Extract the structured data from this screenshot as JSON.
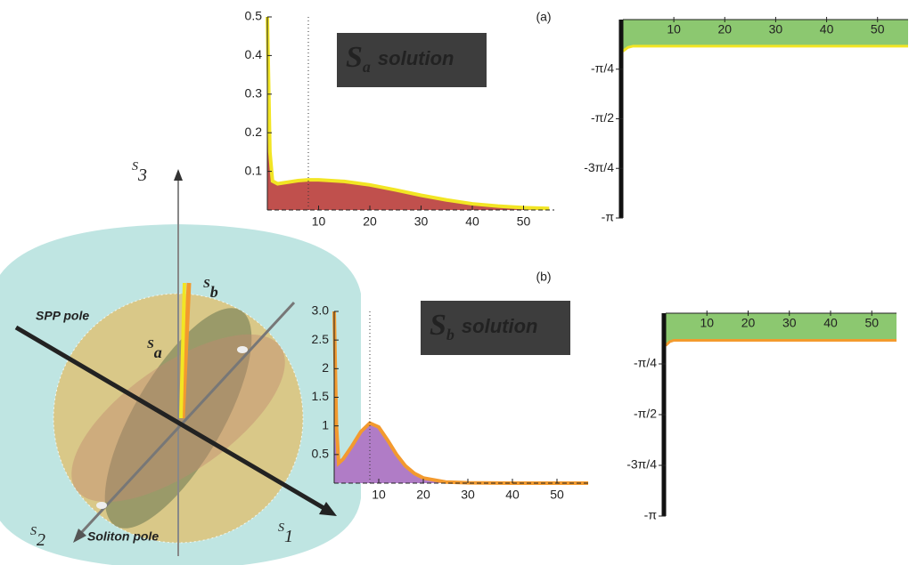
{
  "chart_data": [
    {
      "type": "area",
      "panel_label": "(a)",
      "annotation": {
        "symbol": "S",
        "subscript": "a",
        "text": "solution"
      },
      "x": [
        0,
        0.5,
        1,
        2,
        4,
        6,
        8,
        10,
        15,
        20,
        25,
        30,
        35,
        40,
        45,
        50,
        55
      ],
      "values": [
        0.5,
        0.15,
        0.075,
        0.068,
        0.072,
        0.076,
        0.078,
        0.078,
        0.074,
        0.065,
        0.052,
        0.038,
        0.026,
        0.016,
        0.01,
        0.006,
        0.004
      ],
      "color": "#f2e524",
      "fill": "#c0504d",
      "marker_x": 8,
      "xlim": [
        0,
        56
      ],
      "ylim": [
        0,
        0.5
      ],
      "xticks": [
        10,
        20,
        30,
        40,
        50
      ],
      "yticks": [
        0.1,
        0.2,
        0.3,
        0.4,
        0.5
      ]
    },
    {
      "type": "phase",
      "x": [
        0,
        1,
        2,
        56
      ],
      "values": [
        -0.5,
        -0.44,
        -0.42,
        -0.42
      ],
      "color": "#f2e524",
      "fill": "#8cc870",
      "xlim": [
        0,
        56
      ],
      "ylim": [
        -3.1416,
        0
      ],
      "xticks": [
        10,
        20,
        30,
        40,
        50
      ],
      "yticks": [
        {
          "value": -0.7854,
          "label": "-π/4"
        },
        {
          "value": -1.5708,
          "label": "-π/2"
        },
        {
          "value": -2.3562,
          "label": "-3π/4"
        },
        {
          "value": -3.1416,
          "label": "-π"
        }
      ]
    },
    {
      "type": "area",
      "panel_label": "(b)",
      "annotation": {
        "symbol": "S",
        "subscript": "b",
        "text": "solution"
      },
      "x": [
        0,
        0.5,
        1,
        2,
        4,
        6,
        8,
        10,
        12,
        14,
        16,
        18,
        20,
        25,
        30,
        40,
        50,
        57
      ],
      "values": [
        3.0,
        1.0,
        0.35,
        0.42,
        0.65,
        0.9,
        1.05,
        0.98,
        0.75,
        0.5,
        0.3,
        0.17,
        0.09,
        0.02,
        0.005,
        0,
        0,
        0
      ],
      "color": "#f39a2e",
      "fill": "#b07cc6",
      "marker_x": 8,
      "xlim": [
        0,
        57
      ],
      "ylim": [
        0,
        3.0
      ],
      "xticks": [
        10,
        20,
        30,
        40,
        50
      ],
      "yticks": [
        0.5,
        1.0,
        1.5,
        2.0,
        2.5,
        {
          "value": 3.0,
          "label": "3.0"
        }
      ]
    },
    {
      "type": "phase",
      "x": [
        0,
        1,
        2,
        56
      ],
      "values": [
        -0.5,
        -0.44,
        -0.42,
        -0.42
      ],
      "color": "#f39a2e",
      "fill": "#8cc870",
      "xlim": [
        0,
        56
      ],
      "ylim": [
        -3.1416,
        0
      ],
      "xticks": [
        10,
        20,
        30,
        40,
        50
      ],
      "yticks": [
        {
          "value": -0.7854,
          "label": "-π/4"
        },
        {
          "value": -1.5708,
          "label": "-π/2"
        },
        {
          "value": -2.3562,
          "label": "-3π/4"
        },
        {
          "value": -3.1416,
          "label": "-π"
        }
      ]
    }
  ],
  "sphere": {
    "axes": [
      {
        "symbol": "S",
        "index": "1"
      },
      {
        "symbol": "S",
        "index": "2"
      },
      {
        "symbol": "S",
        "index": "3"
      }
    ],
    "vectors": [
      {
        "symbol": "S",
        "index": "a"
      },
      {
        "symbol": "S",
        "index": "b"
      }
    ],
    "poles": [
      "SPP pole",
      "Soliton pole"
    ]
  }
}
